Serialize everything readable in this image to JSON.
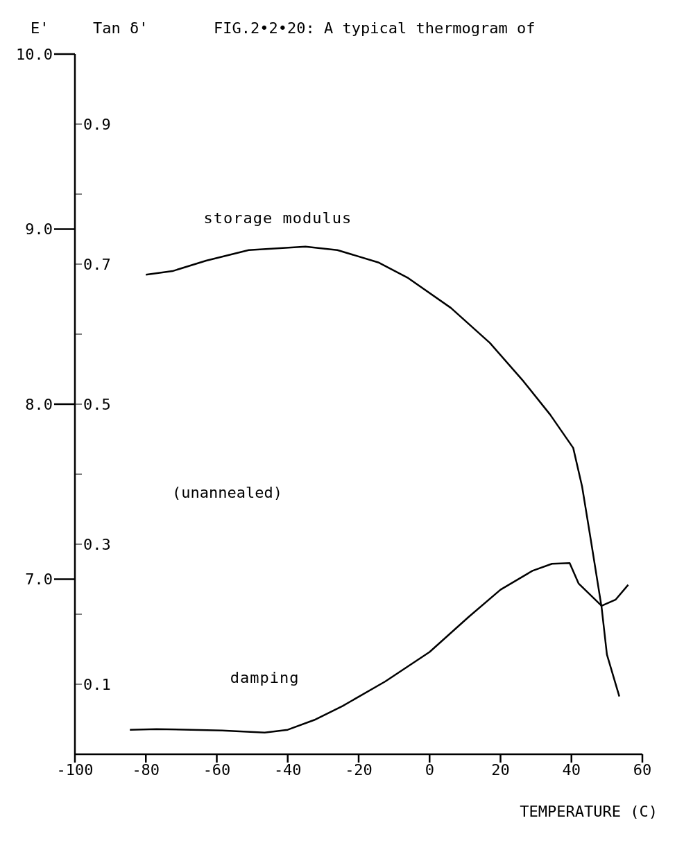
{
  "chart_data": {
    "type": "line",
    "title": "FIG.2•2•20: A typical thermogram of",
    "xlabel": "TEMPERATURE (C)",
    "ylabel": "E'",
    "y2label": "Tan δ'",
    "xlim": [
      -100,
      60
    ],
    "xticks": [
      -100,
      -80,
      -60,
      -40,
      -20,
      0,
      20,
      40,
      60
    ],
    "ylim": [
      6,
      10
    ],
    "yticks": [
      {
        "value": 10,
        "label": "10.0"
      },
      {
        "value": 9,
        "label": "9.0"
      },
      {
        "value": 8,
        "label": "8.0"
      },
      {
        "value": 7,
        "label": "7.0"
      }
    ],
    "y2lim": [
      0,
      1
    ],
    "y2ticks": [
      {
        "value": 0.1,
        "label": "0.1"
      },
      {
        "value": 0.2,
        "label": null
      },
      {
        "value": 0.3,
        "label": "0.3"
      },
      {
        "value": 0.4,
        "label": null
      },
      {
        "value": 0.5,
        "label": "0.5"
      },
      {
        "value": 0.6,
        "label": null
      },
      {
        "value": 0.7,
        "label": "0.7"
      },
      {
        "value": 0.8,
        "label": null
      },
      {
        "value": 0.9,
        "label": "0.9"
      }
    ],
    "annotations": [
      "(unannealed)"
    ],
    "series": [
      {
        "name": "storage modulus",
        "color": "#000000",
        "x": [
          -80,
          -72.5,
          -63,
          -51,
          -35,
          -26,
          -14.5,
          -6,
          6,
          17,
          26.5,
          34,
          40.5,
          43,
          45.5,
          48.5,
          50,
          53.5
        ],
        "values": [
          8.74,
          8.76,
          8.82,
          8.88,
          8.9,
          8.88,
          8.81,
          8.72,
          8.55,
          8.35,
          8.13,
          7.94,
          7.75,
          7.53,
          7.22,
          6.84,
          6.57,
          6.33
        ]
      },
      {
        "name": "damping",
        "color": "#000000",
        "axis": "y2",
        "x": [
          -84.5,
          -77,
          -58.5,
          -46.5,
          -40,
          -32.5,
          -24.5,
          -12.5,
          0,
          11,
          20,
          29,
          34.5,
          39.5,
          42,
          48.5,
          52.5,
          56
        ],
        "values": [
          0.035,
          0.036,
          0.034,
          0.031,
          0.035,
          0.049,
          0.069,
          0.104,
          0.146,
          0.196,
          0.235,
          0.262,
          0.272,
          0.273,
          0.244,
          0.212,
          0.221,
          0.242
        ]
      }
    ]
  }
}
